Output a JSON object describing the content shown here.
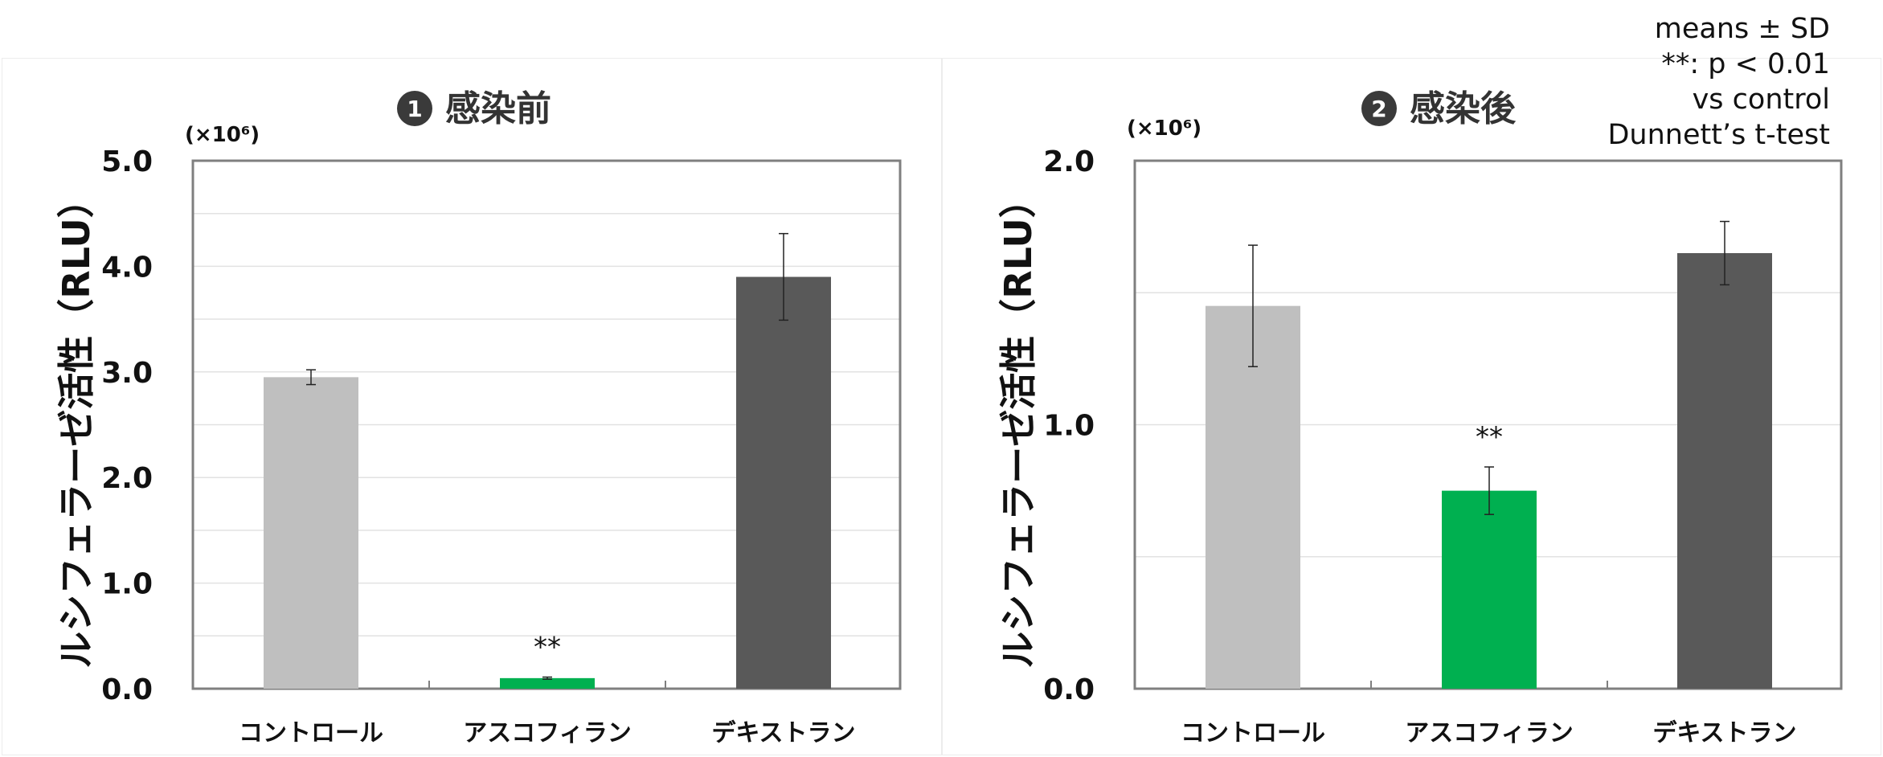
{
  "notes": [
    "means ± SD",
    "**: p < 0.01",
    "vs control",
    "Dunnett’s t-test"
  ],
  "chart_data": [
    {
      "type": "bar",
      "panel_number": "1",
      "title": "感染前",
      "ylabel": "ルシフェラーゼ活性（RLU）",
      "unit": "(×10⁶)",
      "categories": [
        "コントロール",
        "アスコフィラン",
        "デキストラン"
      ],
      "values": [
        2.95,
        0.1,
        3.9
      ],
      "errors": [
        0.07,
        0.01,
        0.41
      ],
      "significance": [
        "",
        "**",
        ""
      ],
      "colors": [
        "#bfbfbf",
        "#00b050",
        "#595959"
      ],
      "ylim": [
        0,
        5
      ],
      "yticks": [
        "0.0",
        "1.0",
        "2.0",
        "3.0",
        "4.0",
        "5.0"
      ],
      "grid": true
    },
    {
      "type": "bar",
      "panel_number": "2",
      "title": "感染後",
      "ylabel": "ルシフェラーゼ活性（RLU）",
      "unit": "(×10⁶)",
      "categories": [
        "コントロール",
        "アスコフィラン",
        "デキストラン"
      ],
      "values": [
        1.45,
        0.75,
        1.65
      ],
      "errors": [
        0.23,
        0.09,
        0.12
      ],
      "significance": [
        "",
        "**",
        ""
      ],
      "colors": [
        "#bfbfbf",
        "#00b050",
        "#595959"
      ],
      "ylim": [
        0,
        2
      ],
      "yticks": [
        "0.0",
        "1.0",
        "2.0"
      ],
      "grid": true
    }
  ]
}
